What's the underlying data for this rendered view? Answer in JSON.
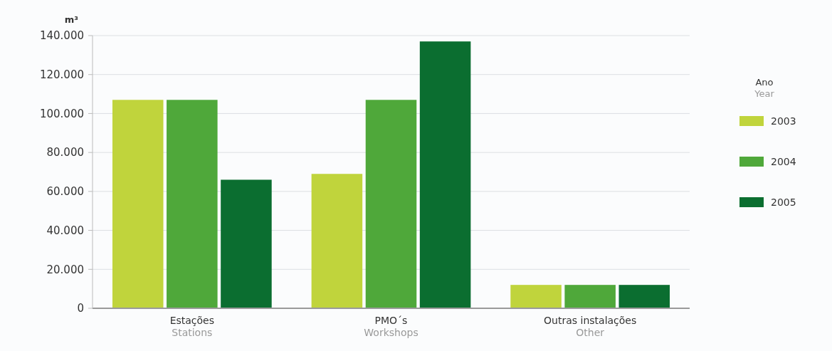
{
  "chart_data": {
    "type": "bar",
    "ylabel": "m³",
    "legend_title": "Ano\nYear",
    "categories": [
      "Estações\nStations",
      "PMO´s\nWorkshops",
      "Outras instalações\nOther"
    ],
    "series": [
      {
        "name": "2003",
        "color": "#c0d43c",
        "values": [
          107000,
          69000,
          12000
        ]
      },
      {
        "name": "2004",
        "color": "#4fa83a",
        "values": [
          107000,
          107000,
          12000
        ]
      },
      {
        "name": "2005",
        "color": "#0b6e30",
        "values": [
          66000,
          137000,
          12000
        ]
      }
    ],
    "ylim": [
      0,
      140000
    ],
    "yticks": [
      {
        "value": 0,
        "label": "0"
      },
      {
        "value": 20000,
        "label": "20.000"
      },
      {
        "value": 40000,
        "label": "40.000"
      },
      {
        "value": 60000,
        "label": "60.000"
      },
      {
        "value": 80000,
        "label": "80.000"
      },
      {
        "value": 100000,
        "label": "100.000"
      },
      {
        "value": 120000,
        "label": "120.000"
      },
      {
        "value": 140000,
        "label": "140.000"
      }
    ],
    "grid": "y",
    "legend": "right"
  }
}
